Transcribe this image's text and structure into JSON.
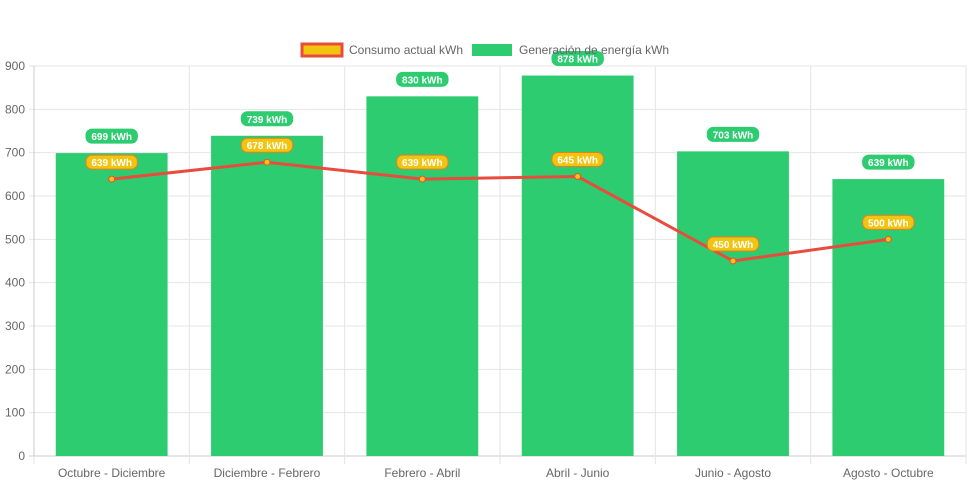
{
  "chart_data": {
    "type": "bar",
    "categories": [
      "Octubre - Diciembre",
      "Diciembre - Febrero",
      "Febrero - Abril",
      "Abril - Junio",
      "Junio - Agosto",
      "Agosto - Octubre"
    ],
    "series": [
      {
        "name": "Consumo actual kWh",
        "type": "line",
        "values": [
          639,
          678,
          639,
          645,
          450,
          500
        ],
        "labels": [
          "639 kWh",
          "678 kWh",
          "639 kWh",
          "645 kWh",
          "450 kWh",
          "500 kWh"
        ],
        "color": "#e74c3c",
        "fill": "#f1c40f"
      },
      {
        "name": "Generación de energía kWh",
        "type": "bar",
        "values": [
          699,
          739,
          830,
          878,
          703,
          639
        ],
        "labels": [
          "699 kWh",
          "739 kWh",
          "830 kWh",
          "878 kWh",
          "703 kWh",
          "639 kWh"
        ],
        "color": "#2ecc71"
      }
    ],
    "ylim": [
      0,
      900
    ],
    "yticks": [
      "0",
      "100",
      "200",
      "300",
      "400",
      "500",
      "600",
      "700",
      "800",
      "900"
    ],
    "grid": true,
    "legend": "top"
  }
}
